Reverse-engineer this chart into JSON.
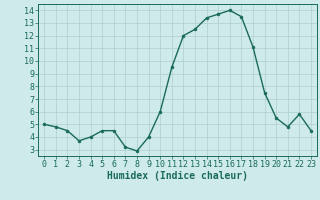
{
  "x": [
    0,
    1,
    2,
    3,
    4,
    5,
    6,
    7,
    8,
    9,
    10,
    11,
    12,
    13,
    14,
    15,
    16,
    17,
    18,
    19,
    20,
    21,
    22,
    23
  ],
  "y": [
    5.0,
    4.8,
    4.5,
    3.7,
    4.0,
    4.5,
    4.5,
    3.2,
    2.9,
    4.0,
    6.0,
    9.5,
    12.0,
    12.5,
    13.4,
    13.7,
    14.0,
    13.5,
    11.1,
    7.5,
    5.5,
    4.8,
    5.8,
    4.5
  ],
  "line_color": "#1a6b5a",
  "marker": "o",
  "marker_size": 2,
  "line_width": 1.0,
  "background_color": "#ceeaea",
  "grid_color": "#b0cece",
  "xlabel": "Humidex (Indice chaleur)",
  "xlim": [
    -0.5,
    23.5
  ],
  "ylim": [
    2.5,
    14.5
  ],
  "yticks": [
    3,
    4,
    5,
    6,
    7,
    8,
    9,
    10,
    11,
    12,
    13,
    14
  ],
  "xticks": [
    0,
    1,
    2,
    3,
    4,
    5,
    6,
    7,
    8,
    9,
    10,
    11,
    12,
    13,
    14,
    15,
    16,
    17,
    18,
    19,
    20,
    21,
    22,
    23
  ],
  "tick_color": "#1a6b5a",
  "label_color": "#1a6b5a",
  "xlabel_fontsize": 7,
  "tick_fontsize": 6
}
